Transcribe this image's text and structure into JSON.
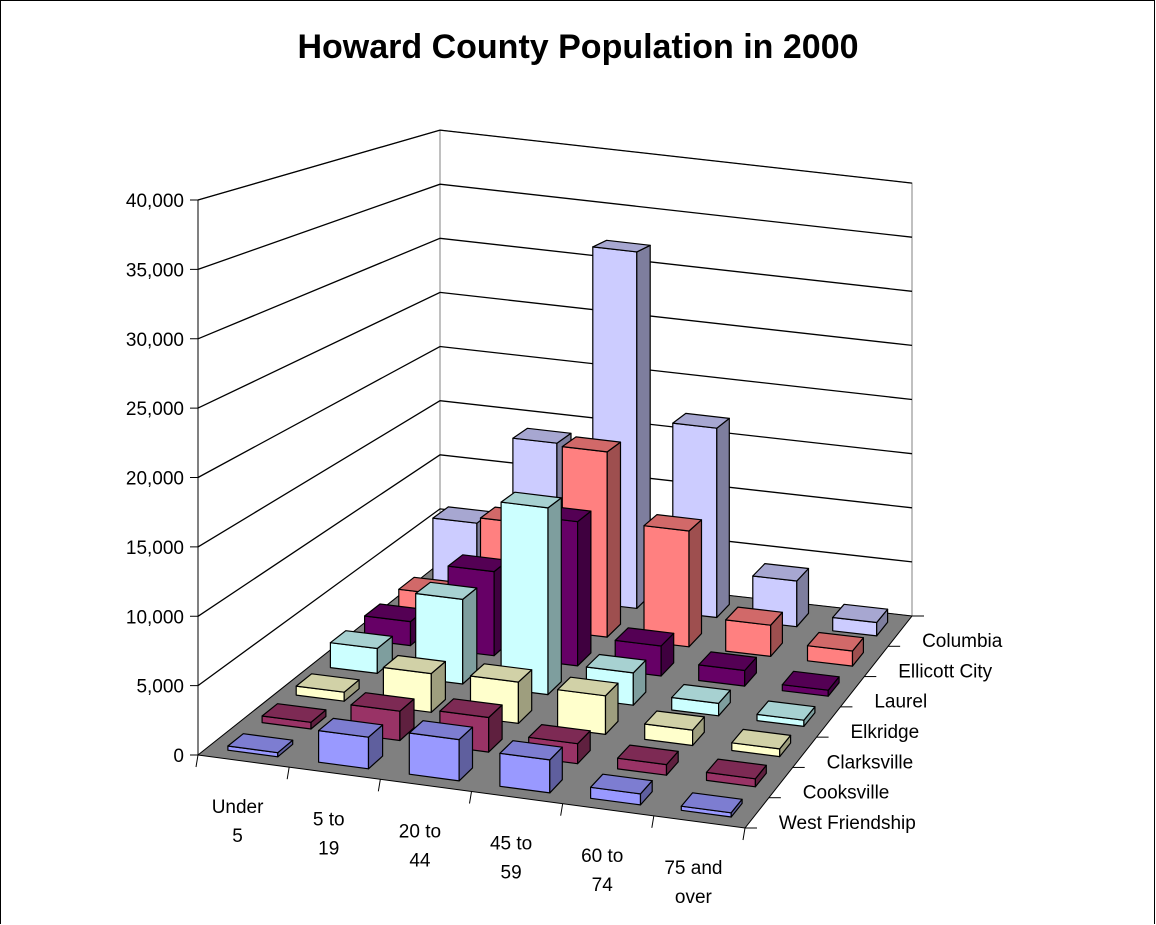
{
  "chart_data": {
    "type": "bar",
    "variant": "3d-column",
    "title": "Howard County Population in 2000",
    "xlabel": "",
    "ylabel": "",
    "ylim": [
      0,
      40000
    ],
    "yticks": [
      "0",
      "5,000",
      "10,000",
      "15,000",
      "20,000",
      "25,000",
      "30,000",
      "35,000",
      "40,000"
    ],
    "categories": [
      [
        "Under",
        "5"
      ],
      [
        "5  to",
        "19"
      ],
      [
        "20 to",
        "44"
      ],
      [
        "45 to",
        "59"
      ],
      [
        "60 to",
        "74"
      ],
      [
        "75 and",
        "over"
      ]
    ],
    "grid": true,
    "series": [
      {
        "name": "West Friendship",
        "color": "#9999ff",
        "values": [
          300,
          2300,
          3000,
          2400,
          800,
          300
        ]
      },
      {
        "name": "Cooksville",
        "color": "#993366",
        "values": [
          500,
          2200,
          2600,
          1500,
          800,
          600
        ]
      },
      {
        "name": "Clarksville",
        "color": "#ffffcc",
        "values": [
          700,
          3000,
          3200,
          3000,
          1200,
          600
        ]
      },
      {
        "name": "Elkridge",
        "color": "#ccffff",
        "values": [
          2000,
          6800,
          15000,
          2600,
          1000,
          500
        ]
      },
      {
        "name": "Laurel",
        "color": "#660066",
        "values": [
          2000,
          7000,
          12000,
          2500,
          1300,
          500
        ]
      },
      {
        "name": "Ellicott City",
        "color": "#ff8080",
        "values": [
          2000,
          9000,
          16000,
          10000,
          2700,
          1300
        ]
      },
      {
        "name": "Columbia",
        "color": "#ccccff",
        "values": [
          6000,
          14000,
          32000,
          17000,
          4100,
          1200
        ]
      }
    ]
  }
}
